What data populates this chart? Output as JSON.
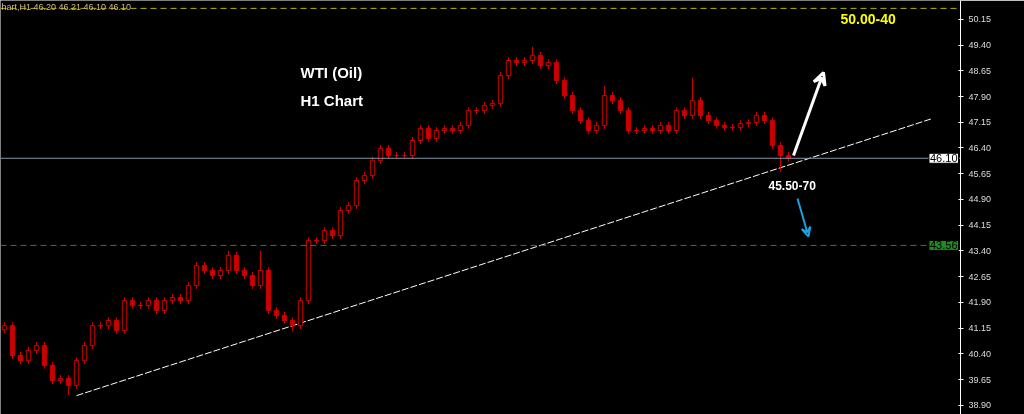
{
  "chart_data": {
    "type": "candlestick",
    "title": "WTI (Oil)",
    "subtitle": "H1 Chart",
    "annotations": [
      "hart,H1  46.20 46.21 46.10 46.10",
      "50.00-40",
      "45.50-70"
    ],
    "categories": [
      null,
      null,
      null,
      null,
      null,
      null,
      null,
      null,
      null,
      null,
      null,
      null,
      null,
      null,
      null,
      null,
      null,
      null,
      null,
      null,
      null,
      null,
      null,
      null,
      null,
      null,
      null,
      null,
      null,
      null,
      null,
      null,
      null,
      null,
      null,
      null,
      null,
      null,
      null,
      null,
      null,
      null,
      null,
      null,
      null,
      null,
      null,
      null,
      null,
      null,
      null,
      null,
      null,
      null,
      null,
      null,
      null,
      null,
      null,
      null,
      null,
      null,
      null,
      null,
      null,
      null,
      null,
      null,
      null,
      null,
      null,
      null,
      null,
      null,
      null,
      null,
      null,
      null,
      null,
      null,
      null,
      null,
      null,
      null,
      null,
      null,
      null,
      null,
      null,
      null,
      null,
      null,
      null,
      null,
      null,
      null,
      null,
      null,
      null,
      null,
      null,
      null,
      null,
      null,
      null,
      null,
      null,
      null,
      null,
      null,
      null,
      null,
      null,
      null,
      null,
      null,
      null,
      null,
      null,
      null
    ],
    "color": "#cc0000",
    "ohlc": [
      [
        41.1,
        41.32,
        41.0,
        41.22
      ],
      [
        41.22,
        41.32,
        40.25,
        40.35
      ],
      [
        40.35,
        40.45,
        40.1,
        40.2
      ],
      [
        40.2,
        40.6,
        40.1,
        40.5
      ],
      [
        40.5,
        40.74,
        40.4,
        40.64
      ],
      [
        40.64,
        40.74,
        39.96,
        40.06
      ],
      [
        40.06,
        40.16,
        39.52,
        39.62
      ],
      [
        39.62,
        39.78,
        39.52,
        39.68
      ],
      [
        39.68,
        39.78,
        39.2,
        39.48
      ],
      [
        39.48,
        40.3,
        39.38,
        40.2
      ],
      [
        40.2,
        40.74,
        40.1,
        40.64
      ],
      [
        40.64,
        41.32,
        40.54,
        41.22
      ],
      [
        41.22,
        41.32,
        41.12,
        41.22
      ],
      [
        41.22,
        41.47,
        41.12,
        41.37
      ],
      [
        41.37,
        41.47,
        40.98,
        41.08
      ],
      [
        41.08,
        42.05,
        40.98,
        41.95
      ],
      [
        41.95,
        42.05,
        41.71,
        41.81
      ],
      [
        41.81,
        41.91,
        41.71,
        41.81
      ],
      [
        41.81,
        42.05,
        41.71,
        41.95
      ],
      [
        41.95,
        42.05,
        41.56,
        41.66
      ],
      [
        41.66,
        42.05,
        41.56,
        41.95
      ],
      [
        41.95,
        42.14,
        41.85,
        42.04
      ],
      [
        42.04,
        42.14,
        41.85,
        41.95
      ],
      [
        41.95,
        42.49,
        41.85,
        42.39
      ],
      [
        42.39,
        43.07,
        42.29,
        42.97
      ],
      [
        42.97,
        43.07,
        42.73,
        42.83
      ],
      [
        42.83,
        42.93,
        42.58,
        42.68
      ],
      [
        42.68,
        42.93,
        42.58,
        42.83
      ],
      [
        42.83,
        43.4,
        42.73,
        43.27
      ],
      [
        43.27,
        43.37,
        42.73,
        42.83
      ],
      [
        42.83,
        42.93,
        42.58,
        42.68
      ],
      [
        42.68,
        42.78,
        42.29,
        42.39
      ],
      [
        42.39,
        43.4,
        42.29,
        42.83
      ],
      [
        42.83,
        42.93,
        41.56,
        41.66
      ],
      [
        41.66,
        41.76,
        41.42,
        41.52
      ],
      [
        41.52,
        41.62,
        41.27,
        41.37
      ],
      [
        41.37,
        41.47,
        41.05,
        41.22
      ],
      [
        41.22,
        42.05,
        41.12,
        41.95
      ],
      [
        41.95,
        43.8,
        41.85,
        43.7
      ],
      [
        43.7,
        43.8,
        43.6,
        43.7
      ],
      [
        43.7,
        44.09,
        43.6,
        43.99
      ],
      [
        43.99,
        44.09,
        43.75,
        43.85
      ],
      [
        43.85,
        44.68,
        43.75,
        44.58
      ],
      [
        44.58,
        44.82,
        44.48,
        44.72
      ],
      [
        44.72,
        45.55,
        44.62,
        45.45
      ],
      [
        45.45,
        45.7,
        45.35,
        45.6
      ],
      [
        45.6,
        46.14,
        45.5,
        46.04
      ],
      [
        46.04,
        46.49,
        45.94,
        46.39
      ],
      [
        46.39,
        46.49,
        46.08,
        46.18
      ],
      [
        46.18,
        46.28,
        46.08,
        46.18
      ],
      [
        46.18,
        46.28,
        46.08,
        46.18
      ],
      [
        46.18,
        46.72,
        46.08,
        46.62
      ],
      [
        46.62,
        47.07,
        46.52,
        46.97
      ],
      [
        46.97,
        47.07,
        46.58,
        46.68
      ],
      [
        46.68,
        47.01,
        46.58,
        46.91
      ],
      [
        46.91,
        47.07,
        46.81,
        46.97
      ],
      [
        46.97,
        47.07,
        46.81,
        46.91
      ],
      [
        46.91,
        47.16,
        46.81,
        47.06
      ],
      [
        47.06,
        47.59,
        46.96,
        47.49
      ],
      [
        47.49,
        47.59,
        47.39,
        47.49
      ],
      [
        47.49,
        47.74,
        47.39,
        47.64
      ],
      [
        47.64,
        47.8,
        47.54,
        47.7
      ],
      [
        47.7,
        48.61,
        47.6,
        48.51
      ],
      [
        48.51,
        49.05,
        48.41,
        48.95
      ],
      [
        48.95,
        49.05,
        48.79,
        48.89
      ],
      [
        48.89,
        49.05,
        48.79,
        48.95
      ],
      [
        48.95,
        49.35,
        48.85,
        49.1
      ],
      [
        49.1,
        49.2,
        48.7,
        48.8
      ],
      [
        48.8,
        48.99,
        48.7,
        48.89
      ],
      [
        48.89,
        48.99,
        48.27,
        48.37
      ],
      [
        48.37,
        48.47,
        47.83,
        47.93
      ],
      [
        47.93,
        48.03,
        47.39,
        47.49
      ],
      [
        47.49,
        47.59,
        47.1,
        47.2
      ],
      [
        47.2,
        47.3,
        46.81,
        46.91
      ],
      [
        46.91,
        47.16,
        46.81,
        47.06
      ],
      [
        47.06,
        48.2,
        46.96,
        47.93
      ],
      [
        47.93,
        48.03,
        47.68,
        47.78
      ],
      [
        47.78,
        47.88,
        47.39,
        47.49
      ],
      [
        47.49,
        47.59,
        46.81,
        46.91
      ],
      [
        46.91,
        47.01,
        46.81,
        46.91
      ],
      [
        46.91,
        47.07,
        46.81,
        46.97
      ],
      [
        46.97,
        47.07,
        46.81,
        46.91
      ],
      [
        46.91,
        47.16,
        46.81,
        47.06
      ],
      [
        47.06,
        47.16,
        46.81,
        46.91
      ],
      [
        46.91,
        47.59,
        46.81,
        47.49
      ],
      [
        47.49,
        47.59,
        47.25,
        47.35
      ],
      [
        47.35,
        48.45,
        47.25,
        47.78
      ],
      [
        47.78,
        47.88,
        47.25,
        47.35
      ],
      [
        47.35,
        47.45,
        47.1,
        47.2
      ],
      [
        47.2,
        47.3,
        46.96,
        47.06
      ],
      [
        47.06,
        47.16,
        46.9,
        47.0
      ],
      [
        47.0,
        47.1,
        46.9,
        47.0
      ],
      [
        47.0,
        47.21,
        46.9,
        47.11
      ],
      [
        47.11,
        47.24,
        47.01,
        47.14
      ],
      [
        47.14,
        47.45,
        47.04,
        47.35
      ],
      [
        47.35,
        47.45,
        47.1,
        47.2
      ],
      [
        47.2,
        47.3,
        46.37,
        46.47
      ],
      [
        46.47,
        46.57,
        45.7,
        46.18
      ],
      [
        46.18,
        46.28,
        46.0,
        46.1
      ],
      null,
      null,
      null,
      null,
      null,
      null,
      null,
      null,
      null,
      null,
      null,
      null,
      null,
      null,
      null,
      null,
      null,
      null,
      null,
      null,
      null
    ],
    "series": [
      {
        "type": "line",
        "color": "#ffffff",
        "line_style": "dashed",
        "values": [
          null,
          null,
          null,
          null,
          null,
          null,
          null,
          null,
          null,
          39.18,
          null,
          null,
          null,
          null,
          null,
          null,
          null,
          null,
          null,
          null,
          null,
          null,
          null,
          null,
          null,
          null,
          null,
          null,
          null,
          null,
          null,
          null,
          null,
          null,
          null,
          null,
          null,
          null,
          null,
          null,
          null,
          null,
          null,
          null,
          null,
          null,
          null,
          null,
          null,
          null,
          null,
          null,
          null,
          null,
          null,
          null,
          null,
          null,
          null,
          null,
          null,
          null,
          null,
          null,
          null,
          null,
          null,
          null,
          null,
          null,
          null,
          null,
          null,
          null,
          null,
          null,
          null,
          null,
          null,
          null,
          null,
          null,
          null,
          null,
          null,
          null,
          null,
          null,
          null,
          null,
          null,
          null,
          null,
          null,
          null,
          null,
          null,
          null,
          null,
          null,
          null,
          null,
          null,
          null,
          null,
          null,
          null,
          null,
          null,
          null,
          null,
          null,
          null,
          null,
          null,
          null,
          47.26,
          null,
          null,
          null
        ]
      }
    ],
    "ref_lines": [
      {
        "axis": "y",
        "value": 50.47,
        "color": "#b3b300",
        "line_style": "dashed"
      },
      {
        "axis": "y",
        "value": 46.1,
        "label": "46.10",
        "color": "#8896a8",
        "line_style": "solid"
      },
      {
        "axis": "y",
        "value": 43.56,
        "label": "43.56",
        "color": "#1f8c1f",
        "line_style": "dashed"
      }
    ],
    "ylim": [
      38.63,
      50.7
    ],
    "yticks": [
      {
        "value": 38.9,
        "label": "38.90"
      },
      39.65,
      {
        "value": 40.4,
        "label": "40.40"
      },
      41.15,
      {
        "value": 41.9,
        "label": "41.90"
      },
      42.65,
      {
        "value": 43.4,
        "label": "43.40"
      },
      44.15,
      {
        "value": 44.9,
        "label": "44.90"
      },
      45.65,
      {
        "value": 46.4,
        "label": "46.40"
      },
      47.15,
      {
        "value": 47.9,
        "label": "47.90"
      },
      48.65,
      {
        "value": 49.4,
        "label": "49.40"
      },
      50.15
    ],
    "tick_labels": "y",
    "grid": false
  }
}
